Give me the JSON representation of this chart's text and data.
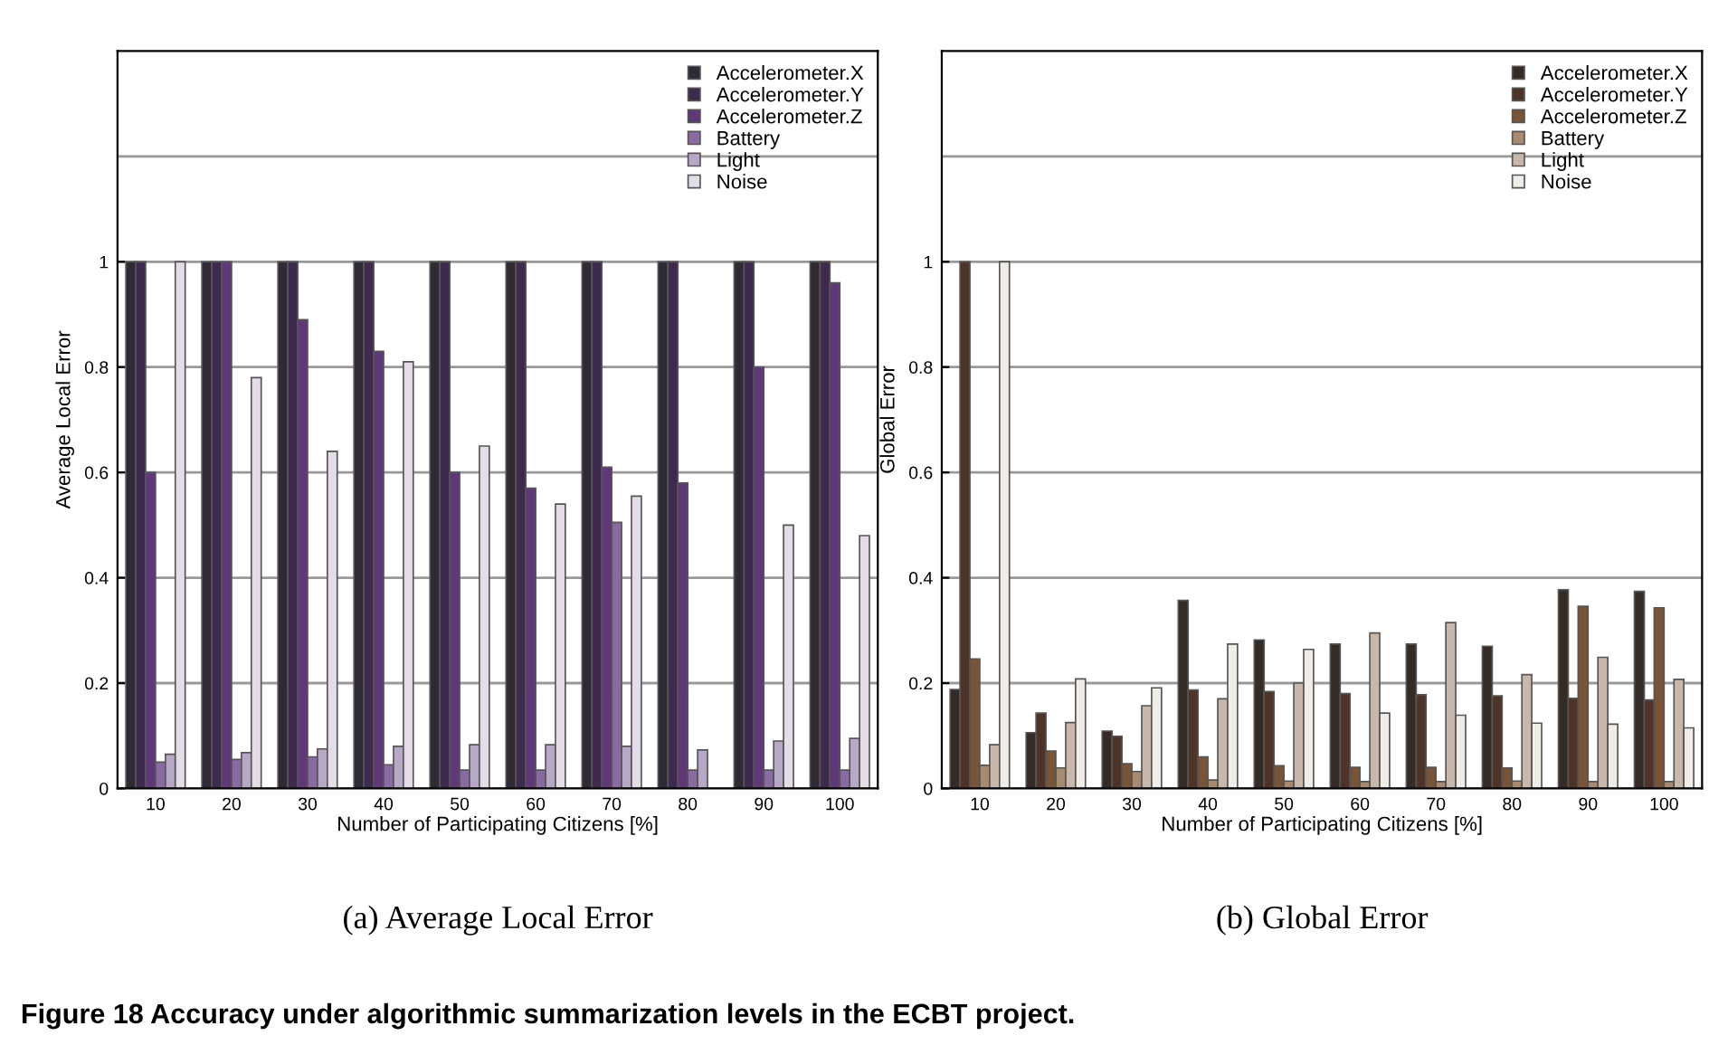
{
  "chart_data": [
    {
      "type": "bar",
      "title": "(a) Average Local Error",
      "ylabel": "Average Local Error",
      "xlabel": "Number of Participating Citizens [%]",
      "categories": [
        "10",
        "20",
        "30",
        "40",
        "50",
        "60",
        "70",
        "80",
        "90",
        "100"
      ],
      "ylim": [
        0,
        1.4
      ],
      "yticks": [
        0,
        0.2,
        0.4,
        0.6,
        0.8,
        1
      ],
      "ref_lines": [
        {
          "axis": "y",
          "value": 1.2,
          "color": "#999999"
        }
      ],
      "grid": "y",
      "legend": "top right",
      "annotations": [
        "Figure 18 Accuracy under algorithmic summarization levels in the ECBT project."
      ],
      "series": [
        {
          "name": "Accelerometer.X",
          "color": "#2f2a33",
          "values": [
            1,
            1,
            1,
            1,
            1,
            1,
            1,
            1,
            1,
            1
          ]
        },
        {
          "name": "Accelerometer.Y",
          "color": "#3f2a4f",
          "values": [
            1,
            1,
            1,
            1,
            1,
            1,
            1,
            1,
            1,
            1
          ]
        },
        {
          "name": "Accelerometer.Z",
          "color": "#60387a",
          "values": [
            0.6,
            1,
            0.89,
            0.83,
            0.6,
            0.57,
            0.61,
            0.58,
            0.8,
            0.96
          ]
        },
        {
          "name": "Battery",
          "color": "#8a6aa3",
          "values": [
            0.05,
            0.055,
            0.06,
            0.045,
            0.035,
            0.035,
            0.505,
            0.035,
            0.035,
            0.035
          ]
        },
        {
          "name": "Light",
          "color": "#b8a8c8",
          "values": [
            0.065,
            0.068,
            0.075,
            0.08,
            0.083,
            0.083,
            0.08,
            0.073,
            0.09,
            0.095
          ]
        },
        {
          "name": "Noise",
          "color": "#e4dde8",
          "values": [
            1,
            0.78,
            0.64,
            0.81,
            0.65,
            0.54,
            0.555,
            null,
            0.5,
            0.48
          ]
        }
      ]
    },
    {
      "type": "bar",
      "title": "(b) Global Error",
      "ylabel": "Global Error",
      "xlabel": "Number of Participating Citizens [%]",
      "categories": [
        "10",
        "20",
        "30",
        "40",
        "50",
        "60",
        "70",
        "80",
        "90",
        "100"
      ],
      "ylim": [
        0,
        1.4
      ],
      "yticks": [
        0,
        0.2,
        0.4,
        0.6,
        0.8,
        1
      ],
      "ref_lines": [
        {
          "axis": "y",
          "value": 1.2,
          "color": "#999999"
        }
      ],
      "grid": "y",
      "legend": "top right",
      "series": [
        {
          "name": "Accelerometer.X",
          "color": "#342a26",
          "values": [
            0.188,
            0.106,
            0.109,
            0.357,
            0.282,
            0.274,
            0.274,
            0.27,
            0.377,
            0.374
          ]
        },
        {
          "name": "Accelerometer.Y",
          "color": "#4e3426",
          "values": [
            1,
            0.143,
            0.099,
            0.187,
            0.184,
            0.18,
            0.178,
            0.176,
            0.171,
            0.168
          ]
        },
        {
          "name": "Accelerometer.Z",
          "color": "#7a5436",
          "values": [
            0.246,
            0.071,
            0.047,
            0.06,
            0.043,
            0.04,
            0.04,
            0.039,
            0.346,
            0.343
          ]
        },
        {
          "name": "Battery",
          "color": "#a88a70",
          "values": [
            0.044,
            0.039,
            0.032,
            0.016,
            0.014,
            0.013,
            0.013,
            0.014,
            0.013,
            0.013
          ]
        },
        {
          "name": "Light",
          "color": "#c8b8ac",
          "values": [
            0.083,
            0.125,
            0.157,
            0.17,
            0.2,
            0.295,
            0.315,
            0.216,
            0.249,
            0.207
          ]
        },
        {
          "name": "Noise",
          "color": "#f0ece8",
          "values": [
            1,
            0.208,
            0.191,
            0.274,
            0.264,
            0.143,
            0.139,
            0.124,
            0.122,
            0.115
          ]
        }
      ]
    }
  ]
}
